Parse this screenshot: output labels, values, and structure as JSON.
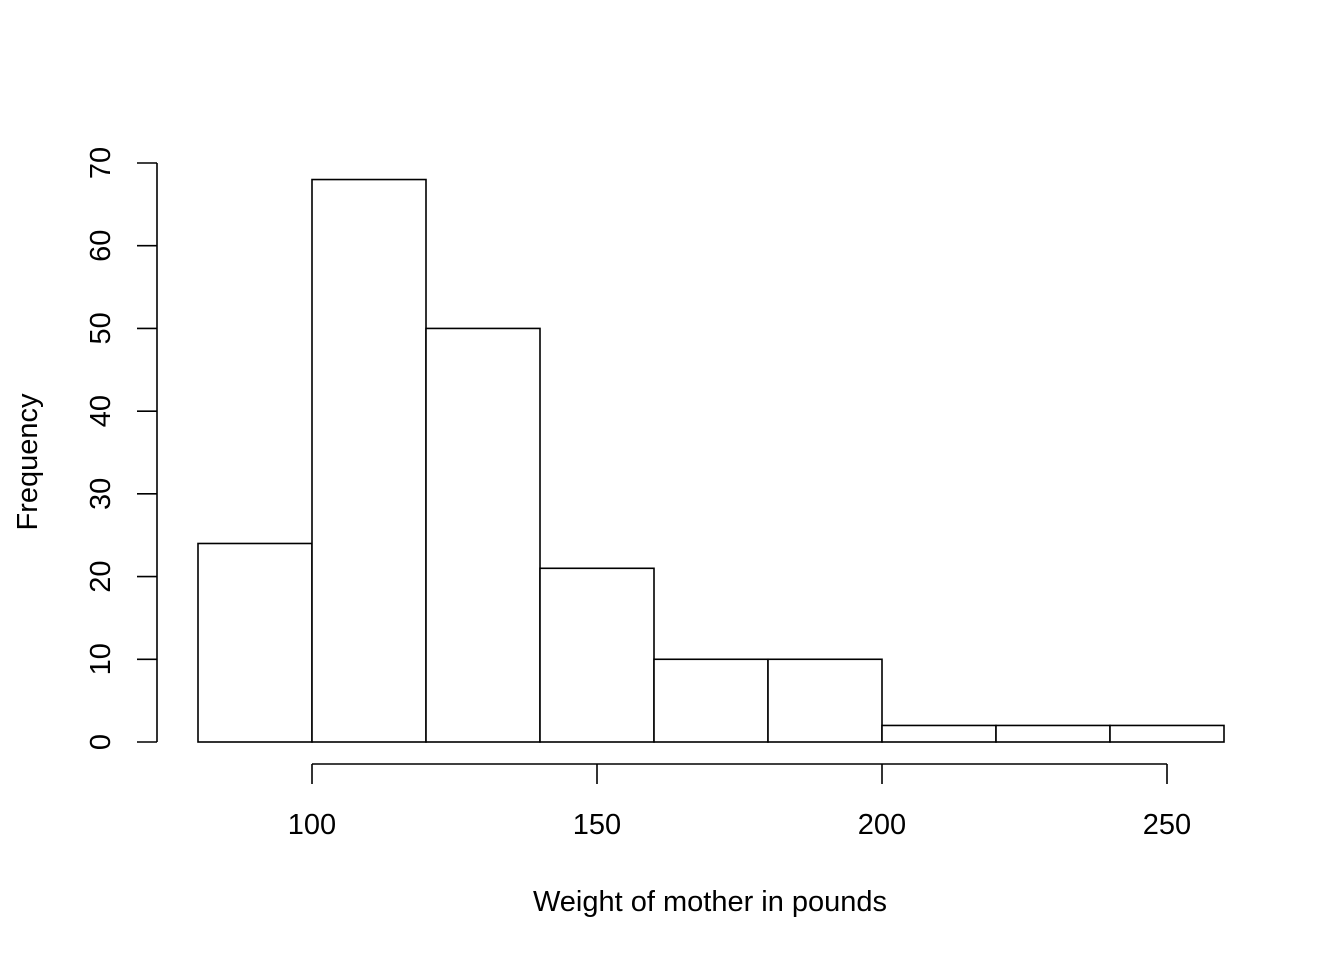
{
  "chart_data": {
    "type": "bar",
    "subtype": "histogram",
    "title": "",
    "xlabel": "Weight of mother in pounds",
    "ylabel": "Frequency",
    "bins": [
      {
        "x0": 80,
        "x1": 100,
        "count": 24
      },
      {
        "x0": 100,
        "x1": 120,
        "count": 68
      },
      {
        "x0": 120,
        "x1": 140,
        "count": 50
      },
      {
        "x0": 140,
        "x1": 160,
        "count": 21
      },
      {
        "x0": 160,
        "x1": 180,
        "count": 10
      },
      {
        "x0": 180,
        "x1": 200,
        "count": 10
      },
      {
        "x0": 200,
        "x1": 220,
        "count": 2
      },
      {
        "x0": 220,
        "x1": 240,
        "count": 2
      },
      {
        "x0": 240,
        "x1": 260,
        "count": 2
      }
    ],
    "x_ticks": [
      "100",
      "150",
      "200",
      "250"
    ],
    "y_ticks": [
      "0",
      "10",
      "20",
      "30",
      "40",
      "50",
      "60",
      "70"
    ],
    "xlim": [
      80,
      260
    ],
    "ylim": [
      0,
      70
    ],
    "grid": false,
    "legend": "none",
    "bar_fill": "#ffffff",
    "bar_stroke": "#000000"
  }
}
